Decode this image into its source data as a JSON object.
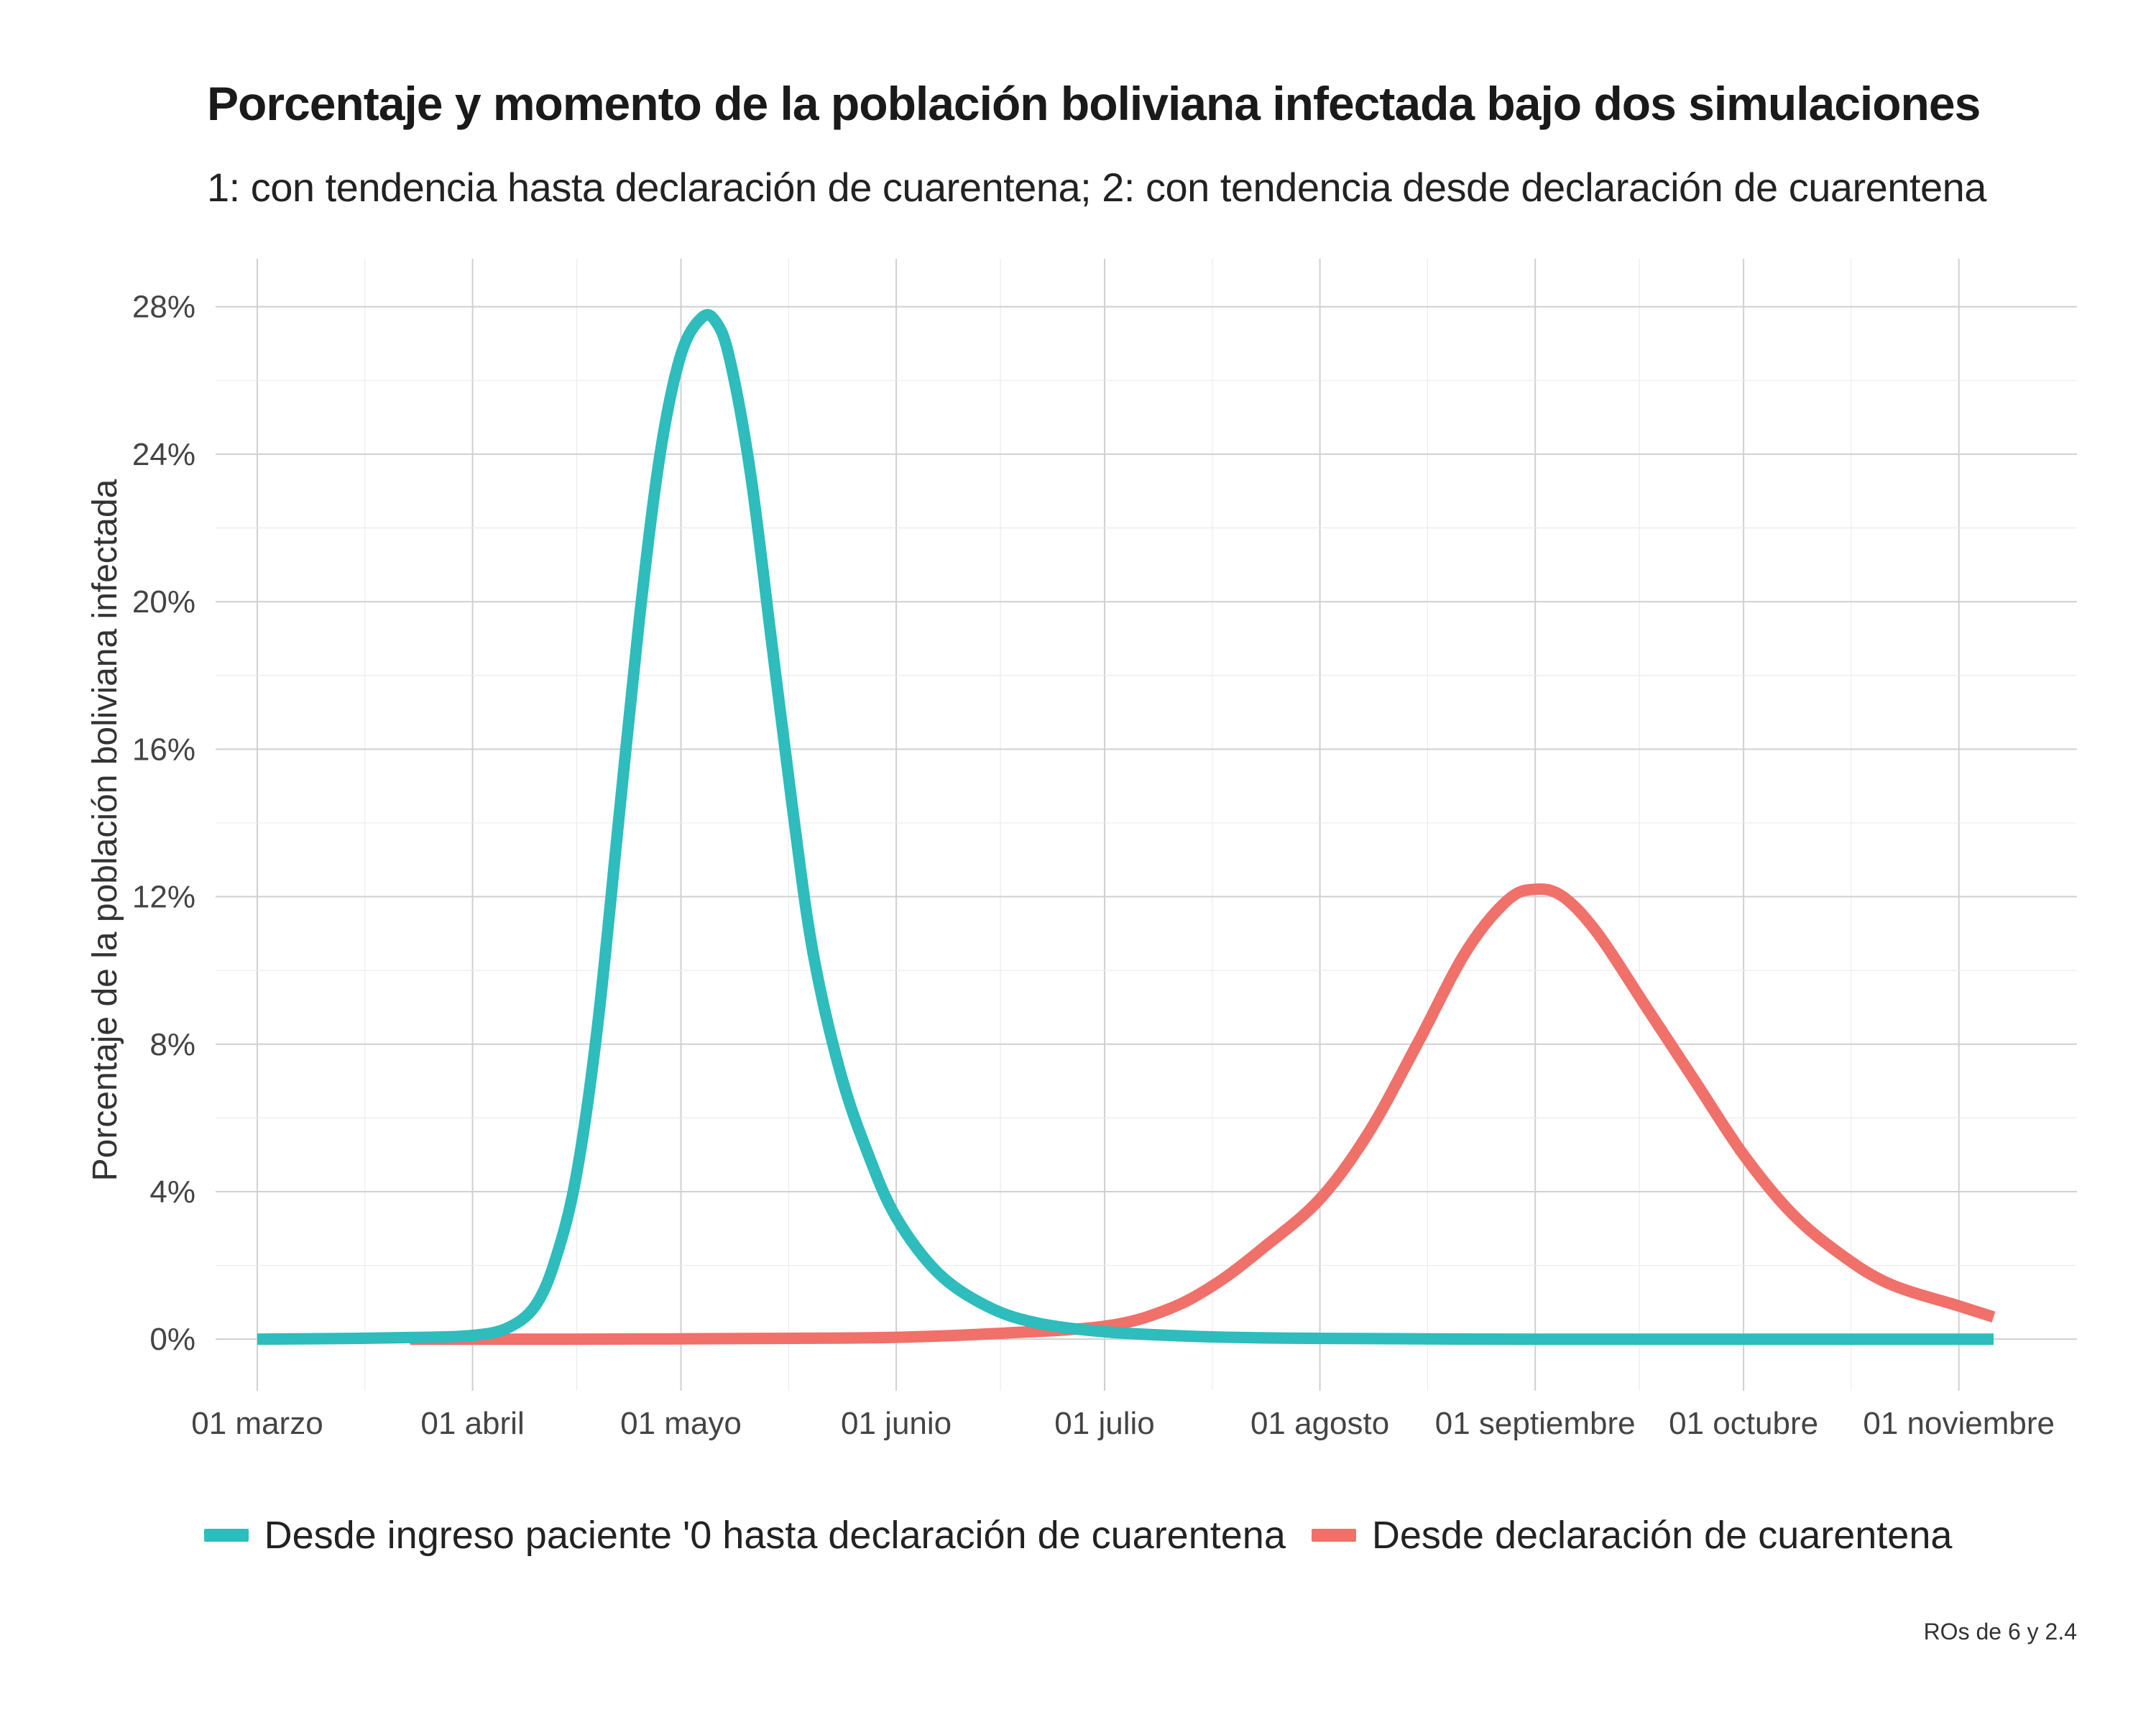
{
  "chart_data": {
    "type": "line",
    "title": "Porcentaje y momento de la población boliviana infectada bajo dos simulaciones",
    "subtitle": "1: con tendencia hasta declaración de cuarentena; 2: con tendencia desde declaración de cuarentena",
    "xlabel": "",
    "ylabel": "Porcentaje de la población boliviana infectada",
    "caption": "ROs de 6 y 2.4",
    "x_ticks": [
      "01 marzo",
      "01 abril",
      "01 mayo",
      "01 junio",
      "01 julio",
      "01 agosto",
      "01 septiembre",
      "01 octubre",
      "01 noviembre"
    ],
    "x_tick_dates": [
      "2020-03-01",
      "2020-04-01",
      "2020-05-01",
      "2020-06-01",
      "2020-07-01",
      "2020-08-01",
      "2020-09-01",
      "2020-10-01",
      "2020-11-01"
    ],
    "xlim": [
      "2020-02-24",
      "2020-11-18"
    ],
    "y_ticks": [
      "0%",
      "4%",
      "8%",
      "12%",
      "16%",
      "20%",
      "24%",
      "28%"
    ],
    "y_tick_values": [
      0,
      4,
      8,
      12,
      16,
      20,
      24,
      28
    ],
    "ylim": [
      -1.4,
      29.3
    ],
    "grid": true,
    "legend_position": "bottom",
    "series": [
      {
        "name": "Desde ingreso paciente '0 hasta declaración de cuarentena",
        "color": "#2ebcbc",
        "points": [
          [
            "2020-03-01",
            0
          ],
          [
            "2020-03-15",
            0.02
          ],
          [
            "2020-03-25",
            0.05
          ],
          [
            "2020-04-01",
            0.1
          ],
          [
            "2020-04-06",
            0.3
          ],
          [
            "2020-04-10",
            0.9
          ],
          [
            "2020-04-13",
            2.2
          ],
          [
            "2020-04-16",
            4.5
          ],
          [
            "2020-04-19",
            8.5
          ],
          [
            "2020-04-22",
            14.0
          ],
          [
            "2020-04-25",
            19.5
          ],
          [
            "2020-04-28",
            24.0
          ],
          [
            "2020-05-01",
            26.7
          ],
          [
            "2020-05-04",
            27.7
          ],
          [
            "2020-05-06",
            27.6
          ],
          [
            "2020-05-08",
            26.6
          ],
          [
            "2020-05-11",
            23.5
          ],
          [
            "2020-05-14",
            19.0
          ],
          [
            "2020-05-17",
            14.5
          ],
          [
            "2020-05-20",
            10.5
          ],
          [
            "2020-05-24",
            7.2
          ],
          [
            "2020-05-28",
            5.0
          ],
          [
            "2020-06-01",
            3.3
          ],
          [
            "2020-06-07",
            1.8
          ],
          [
            "2020-06-14",
            0.9
          ],
          [
            "2020-06-21",
            0.45
          ],
          [
            "2020-07-01",
            0.2
          ],
          [
            "2020-07-15",
            0.07
          ],
          [
            "2020-08-01",
            0.02
          ],
          [
            "2020-09-01",
            0
          ],
          [
            "2020-10-01",
            0
          ],
          [
            "2020-11-06",
            0
          ]
        ]
      },
      {
        "name": "Desde declaración de cuarentena",
        "color": "#f0706a",
        "points": [
          [
            "2020-03-23",
            0
          ],
          [
            "2020-04-15",
            0
          ],
          [
            "2020-05-15",
            0.02
          ],
          [
            "2020-06-01",
            0.05
          ],
          [
            "2020-06-15",
            0.15
          ],
          [
            "2020-07-01",
            0.35
          ],
          [
            "2020-07-10",
            0.8
          ],
          [
            "2020-07-17",
            1.5
          ],
          [
            "2020-07-24",
            2.5
          ],
          [
            "2020-08-01",
            3.8
          ],
          [
            "2020-08-08",
            5.6
          ],
          [
            "2020-08-15",
            8.0
          ],
          [
            "2020-08-22",
            10.5
          ],
          [
            "2020-08-28",
            11.9
          ],
          [
            "2020-09-01",
            12.2
          ],
          [
            "2020-09-05",
            12.0
          ],
          [
            "2020-09-10",
            11.0
          ],
          [
            "2020-09-17",
            9.0
          ],
          [
            "2020-09-24",
            7.0
          ],
          [
            "2020-10-01",
            5.0
          ],
          [
            "2020-10-08",
            3.4
          ],
          [
            "2020-10-15",
            2.3
          ],
          [
            "2020-10-22",
            1.5
          ],
          [
            "2020-11-01",
            0.9
          ],
          [
            "2020-11-06",
            0.6
          ]
        ]
      }
    ]
  }
}
